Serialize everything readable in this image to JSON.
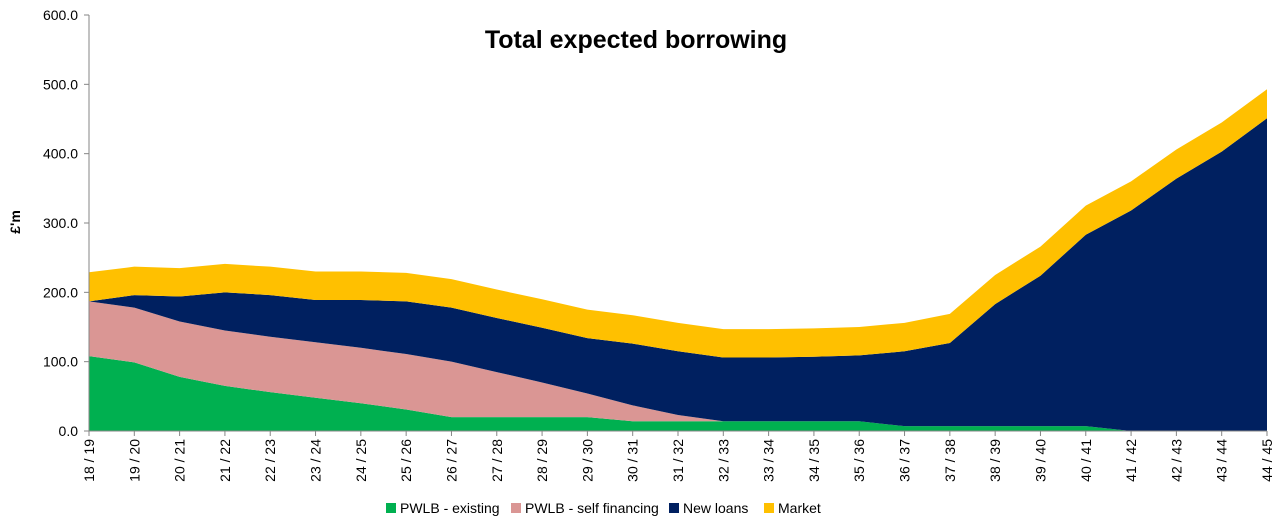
{
  "chart_data": {
    "type": "area",
    "stacked": true,
    "title": "Total expected borrowing",
    "xlabel": "",
    "ylabel": "£'m",
    "ylim": [
      0,
      600
    ],
    "yticks": [
      "0.0",
      "100.0",
      "200.0",
      "300.0",
      "400.0",
      "500.0",
      "600.0"
    ],
    "legend_position": "bottom",
    "grid": false,
    "categories": [
      "18 / 19",
      "19 / 20",
      "20 / 21",
      "21 / 22",
      "22 / 23",
      "23 / 24",
      "24 / 25",
      "25 / 26",
      "26 / 27",
      "27 / 28",
      "28 / 29",
      "29 / 30",
      "30 / 31",
      "31 / 32",
      "32 / 33",
      "33 / 34",
      "34 / 35",
      "35 / 36",
      "36 / 37",
      "37 / 38",
      "38 / 39",
      "39 / 40",
      "40 / 41",
      "41 / 42",
      "42 / 43",
      "43 / 44",
      "44 / 45"
    ],
    "series": [
      {
        "name": "PWLB - existing",
        "color": "#00b050",
        "values": [
          108,
          99,
          78,
          65,
          56,
          48,
          40,
          31,
          20,
          20,
          20,
          20,
          14,
          14,
          14,
          14,
          14,
          14,
          7,
          7,
          7,
          7,
          7,
          0,
          0,
          0,
          0
        ]
      },
      {
        "name": "PWLB - self financing",
        "color": "#da9694",
        "values": [
          79,
          79,
          80,
          80,
          80,
          80,
          80,
          80,
          80,
          65,
          50,
          34,
          23,
          9,
          0,
          0,
          0,
          0,
          0,
          0,
          0,
          0,
          0,
          0,
          0,
          0,
          0
        ]
      },
      {
        "name": "New loans",
        "color": "#002060",
        "values": [
          0,
          18,
          36,
          55,
          60,
          61,
          69,
          76,
          78,
          78,
          79,
          80,
          89,
          92,
          92,
          92,
          93,
          95,
          108,
          120,
          176,
          217,
          276,
          318,
          364,
          403,
          451
        ]
      },
      {
        "name": "Market",
        "color": "#ffc000",
        "values": [
          42,
          41,
          41,
          41,
          41,
          41,
          41,
          41,
          41,
          41,
          41,
          41,
          41,
          41,
          41,
          41,
          41,
          41,
          41,
          42,
          42,
          42,
          42,
          42,
          42,
          42,
          42
        ]
      }
    ]
  }
}
